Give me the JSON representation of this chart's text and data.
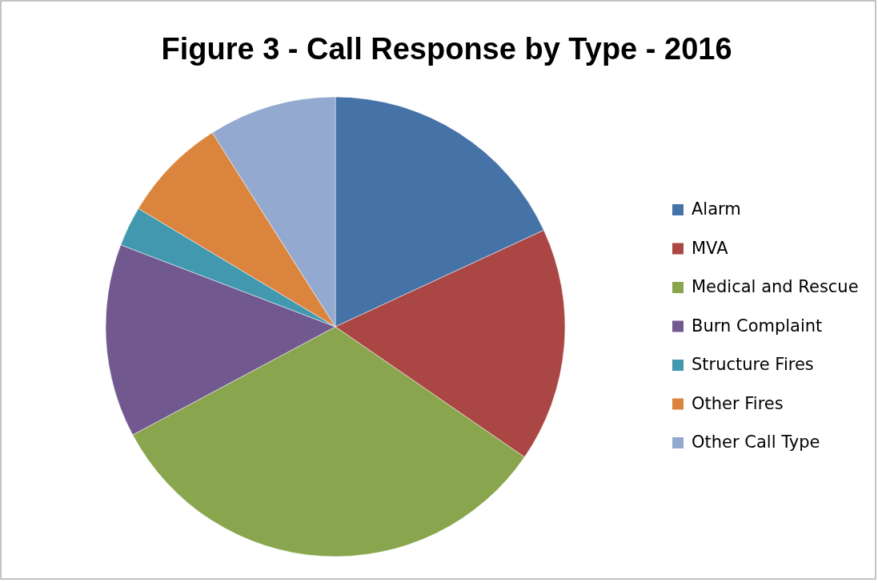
{
  "chart_data": {
    "type": "pie",
    "title": "Figure 3 - Call Response by Type - 2016",
    "categories": [
      "Alarm",
      "MVA",
      "Medical and Rescue",
      "Burn Complaint",
      "Structure Fires",
      "Other Fires",
      "Other Call Type"
    ],
    "values": [
      18.1,
      16.5,
      32.6,
      13.6,
      2.8,
      7.4,
      9.0
    ],
    "colors": [
      "#4572a7",
      "#aa4643",
      "#89a54e",
      "#71588f",
      "#4198af",
      "#db843d",
      "#93a9cf"
    ],
    "legend": "right"
  }
}
